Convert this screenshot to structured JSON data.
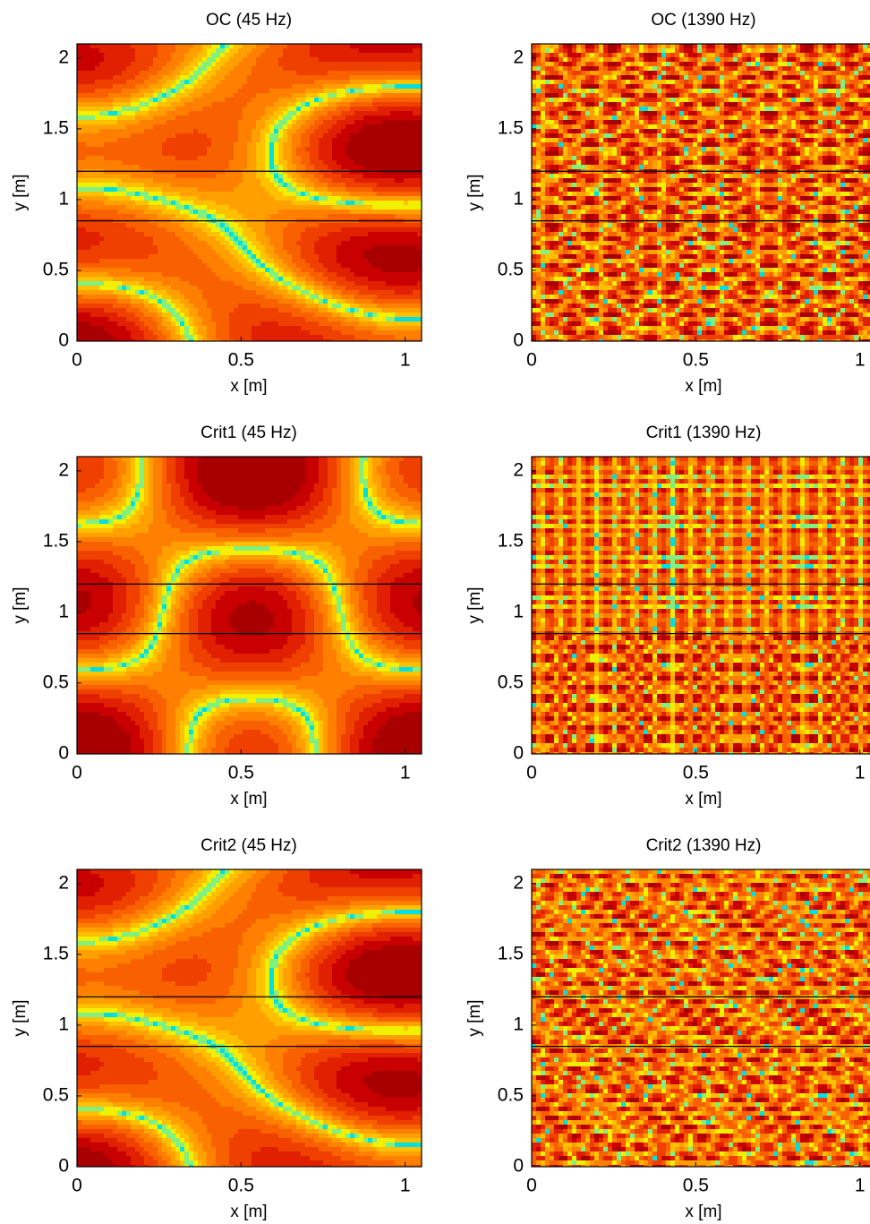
{
  "chart_data": [
    {
      "type": "heatmap",
      "title": "OC (45 Hz)",
      "xlabel": "x [m]",
      "ylabel": "y [m]",
      "xlim": [
        0,
        1.05
      ],
      "ylim": [
        0,
        2.1
      ],
      "xticks": [
        0,
        0.5,
        1
      ],
      "yticks": [
        0,
        0.5,
        1,
        1.5,
        2
      ],
      "hlines": [
        0.85,
        1.2
      ]
    },
    {
      "type": "heatmap",
      "title": "OC (1390 Hz)",
      "xlabel": "x [m]",
      "ylabel": "y [m]",
      "xlim": [
        0,
        1.05
      ],
      "ylim": [
        0,
        2.1
      ],
      "xticks": [
        0,
        0.5,
        1
      ],
      "yticks": [
        0,
        0.5,
        1,
        1.5,
        2
      ],
      "hlines": [
        0.85,
        1.2
      ]
    },
    {
      "type": "heatmap",
      "title": "Crit1 (45 Hz)",
      "xlabel": "x [m]",
      "ylabel": "y [m]",
      "xlim": [
        0,
        1.05
      ],
      "ylim": [
        0,
        2.1
      ],
      "xticks": [
        0,
        0.5,
        1
      ],
      "yticks": [
        0,
        0.5,
        1,
        1.5,
        2
      ],
      "hlines": [
        0.85,
        1.2
      ]
    },
    {
      "type": "heatmap",
      "title": "Crit1 (1390 Hz)",
      "xlabel": "x [m]",
      "ylabel": "y [m]",
      "xlim": [
        0,
        1.05
      ],
      "ylim": [
        0,
        2.1
      ],
      "xticks": [
        0,
        0.5,
        1
      ],
      "yticks": [
        0,
        0.5,
        1,
        1.5,
        2
      ],
      "hlines": [
        0.85,
        1.2
      ]
    },
    {
      "type": "heatmap",
      "title": "Crit2 (45 Hz)",
      "xlabel": "x [m]",
      "ylabel": "y [m]",
      "xlim": [
        0,
        1.05
      ],
      "ylim": [
        0,
        2.1
      ],
      "xticks": [
        0,
        0.5,
        1
      ],
      "yticks": [
        0,
        0.5,
        1,
        1.5,
        2
      ],
      "hlines": [
        0.85,
        1.2
      ]
    },
    {
      "type": "heatmap",
      "title": "Crit2 (1390 Hz)",
      "xlabel": "x [m]",
      "ylabel": "y [m]",
      "xlim": [
        0,
        1.05
      ],
      "ylim": [
        0,
        2.1
      ],
      "xticks": [
        0,
        0.5,
        1
      ],
      "yticks": [
        0,
        0.5,
        1,
        1.5,
        2
      ],
      "hlines": [
        0.85,
        1.2
      ]
    }
  ]
}
